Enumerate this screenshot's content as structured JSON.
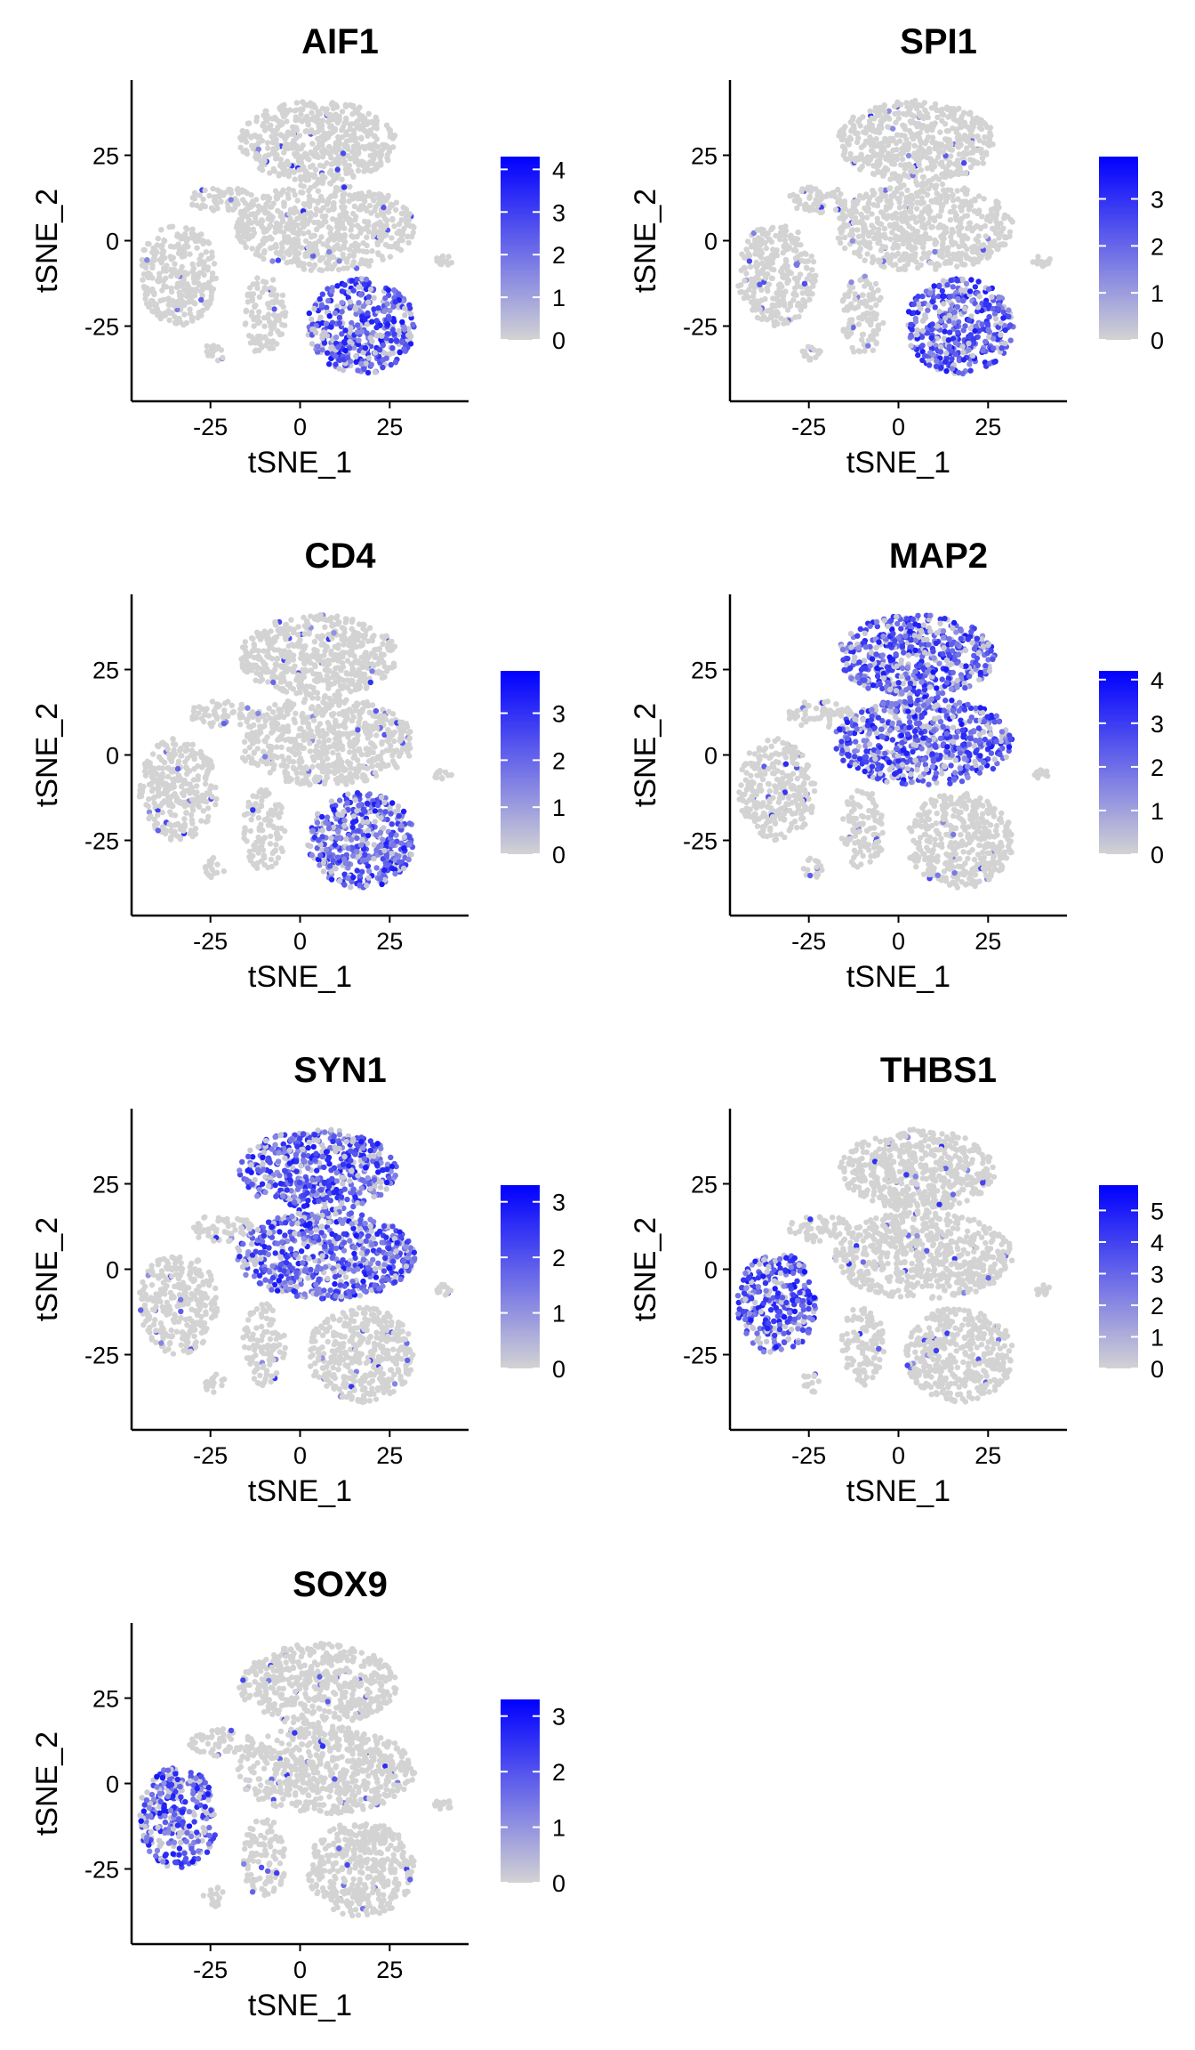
{
  "chart_data": [
    {
      "type": "scatter",
      "title": "AIF1",
      "xlabel": "tSNE_1",
      "ylabel": "tSNE_2",
      "xticks": [
        -25,
        0,
        25
      ],
      "yticks": [
        25,
        0,
        -25
      ],
      "xlim": [
        -47,
        47
      ],
      "ylim": [
        -47,
        47
      ],
      "grid": false,
      "legend_placement": "right",
      "color_scale": {
        "low": "#d3d3d3",
        "high": "#0000ff",
        "ticks": [
          0,
          1,
          2,
          3,
          4
        ],
        "max": 4.3
      },
      "high_expression_region": "cluster-bottom-right"
    },
    {
      "type": "scatter",
      "title": "SPI1",
      "xlabel": "tSNE_1",
      "ylabel": "tSNE_2",
      "xticks": [
        -25,
        0,
        25
      ],
      "yticks": [
        25,
        0,
        -25
      ],
      "xlim": [
        -47,
        47
      ],
      "ylim": [
        -47,
        47
      ],
      "grid": false,
      "legend_placement": "right",
      "color_scale": {
        "low": "#d3d3d3",
        "high": "#0000ff",
        "ticks": [
          0,
          1,
          2,
          3
        ],
        "max": 3.9
      },
      "high_expression_region": "cluster-bottom-right"
    },
    {
      "type": "scatter",
      "title": "CD4",
      "xlabel": "tSNE_1",
      "ylabel": "tSNE_2",
      "xticks": [
        -25,
        0,
        25
      ],
      "yticks": [
        25,
        0,
        -25
      ],
      "xlim": [
        -47,
        47
      ],
      "ylim": [
        -47,
        47
      ],
      "grid": false,
      "legend_placement": "right",
      "color_scale": {
        "low": "#d3d3d3",
        "high": "#0000ff",
        "ticks": [
          0,
          1,
          2,
          3
        ],
        "max": 3.9
      },
      "high_expression_region": "cluster-bottom-right"
    },
    {
      "type": "scatter",
      "title": "MAP2",
      "xlabel": "tSNE_1",
      "ylabel": "tSNE_2",
      "xticks": [
        -25,
        0,
        25
      ],
      "yticks": [
        25,
        0,
        -25
      ],
      "xlim": [
        -47,
        47
      ],
      "ylim": [
        -47,
        47
      ],
      "grid": false,
      "legend_placement": "right",
      "color_scale": {
        "low": "#d3d3d3",
        "high": "#0000ff",
        "ticks": [
          0,
          1,
          2,
          3,
          4
        ],
        "max": 4.2
      },
      "high_expression_region": "cluster-top-center"
    },
    {
      "type": "scatter",
      "title": "SYN1",
      "xlabel": "tSNE_1",
      "ylabel": "tSNE_2",
      "xticks": [
        -25,
        0,
        25
      ],
      "yticks": [
        25,
        0,
        -25
      ],
      "xlim": [
        -47,
        47
      ],
      "ylim": [
        -47,
        47
      ],
      "grid": false,
      "legend_placement": "right",
      "color_scale": {
        "low": "#d3d3d3",
        "high": "#0000ff",
        "ticks": [
          0,
          1,
          2,
          3
        ],
        "max": 3.3
      },
      "high_expression_region": "cluster-top-center"
    },
    {
      "type": "scatter",
      "title": "THBS1",
      "xlabel": "tSNE_1",
      "ylabel": "tSNE_2",
      "xticks": [
        -25,
        0,
        25
      ],
      "yticks": [
        25,
        0,
        -25
      ],
      "xlim": [
        -47,
        47
      ],
      "ylim": [
        -47,
        47
      ],
      "grid": false,
      "legend_placement": "right",
      "color_scale": {
        "low": "#d3d3d3",
        "high": "#0000ff",
        "ticks": [
          0,
          1,
          2,
          3,
          4,
          5
        ],
        "max": 5.8
      },
      "high_expression_region": "cluster-left"
    },
    {
      "type": "scatter",
      "title": "SOX9",
      "xlabel": "tSNE_1",
      "ylabel": "tSNE_2",
      "xticks": [
        -25,
        0,
        25
      ],
      "yticks": [
        25,
        0,
        -25
      ],
      "xlim": [
        -47,
        47
      ],
      "ylim": [
        -47,
        47
      ],
      "grid": false,
      "legend_placement": "right",
      "color_scale": {
        "low": "#d3d3d3",
        "high": "#0000ff",
        "ticks": [
          0,
          1,
          2,
          3
        ],
        "max": 3.3
      },
      "high_expression_region": "cluster-left"
    }
  ]
}
